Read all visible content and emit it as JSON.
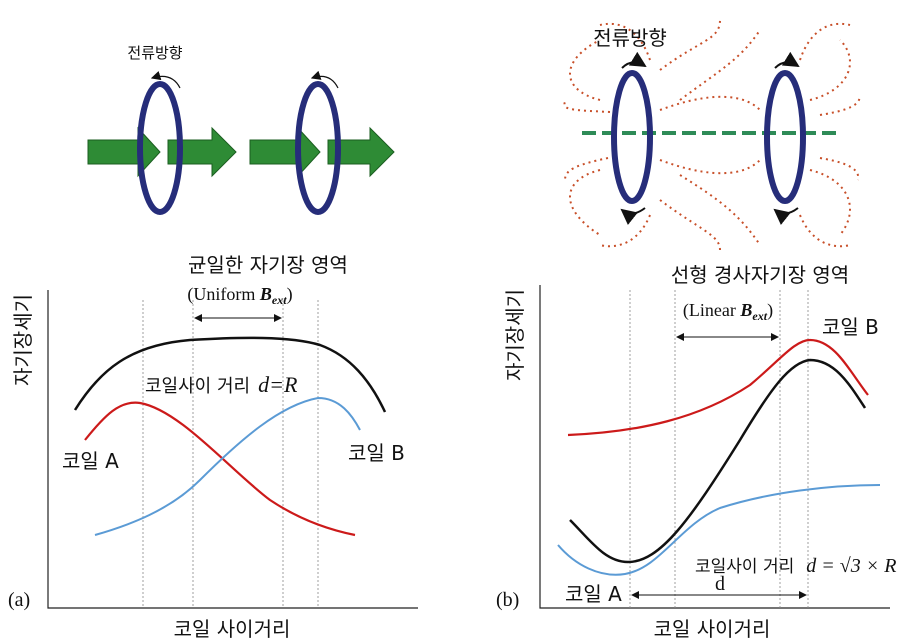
{
  "panels": [
    {
      "label": "(a)",
      "current_direction": "전류방향",
      "region_title": "균일한 자기장 영역",
      "region_subtitle": {
        "open": "(Uniform ",
        "symbol": "B",
        "subscript": "ext",
        "close": ")"
      },
      "distance_label": {
        "text": "코일사이 거리",
        "formula": "d=R"
      },
      "coil_a": "코일 A",
      "coil_b": "코일 B",
      "y_axis": "자기장세기",
      "x_axis": "코일 사이거리"
    },
    {
      "label": "(b)",
      "current_direction": "전류방향",
      "region_title": "선형 경사자기장 영역",
      "region_subtitle": {
        "open": "(Linear ",
        "symbol": "B",
        "subscript": "ext",
        "close": ")"
      },
      "distance_label": {
        "text": "코일사이 거리",
        "formula": "d = √3 × R"
      },
      "coil_a": "코일 A",
      "coil_b": "코일 B",
      "distance_symbol": "d",
      "y_axis": "자기장세기",
      "x_axis": "코일 사이거리"
    }
  ]
}
